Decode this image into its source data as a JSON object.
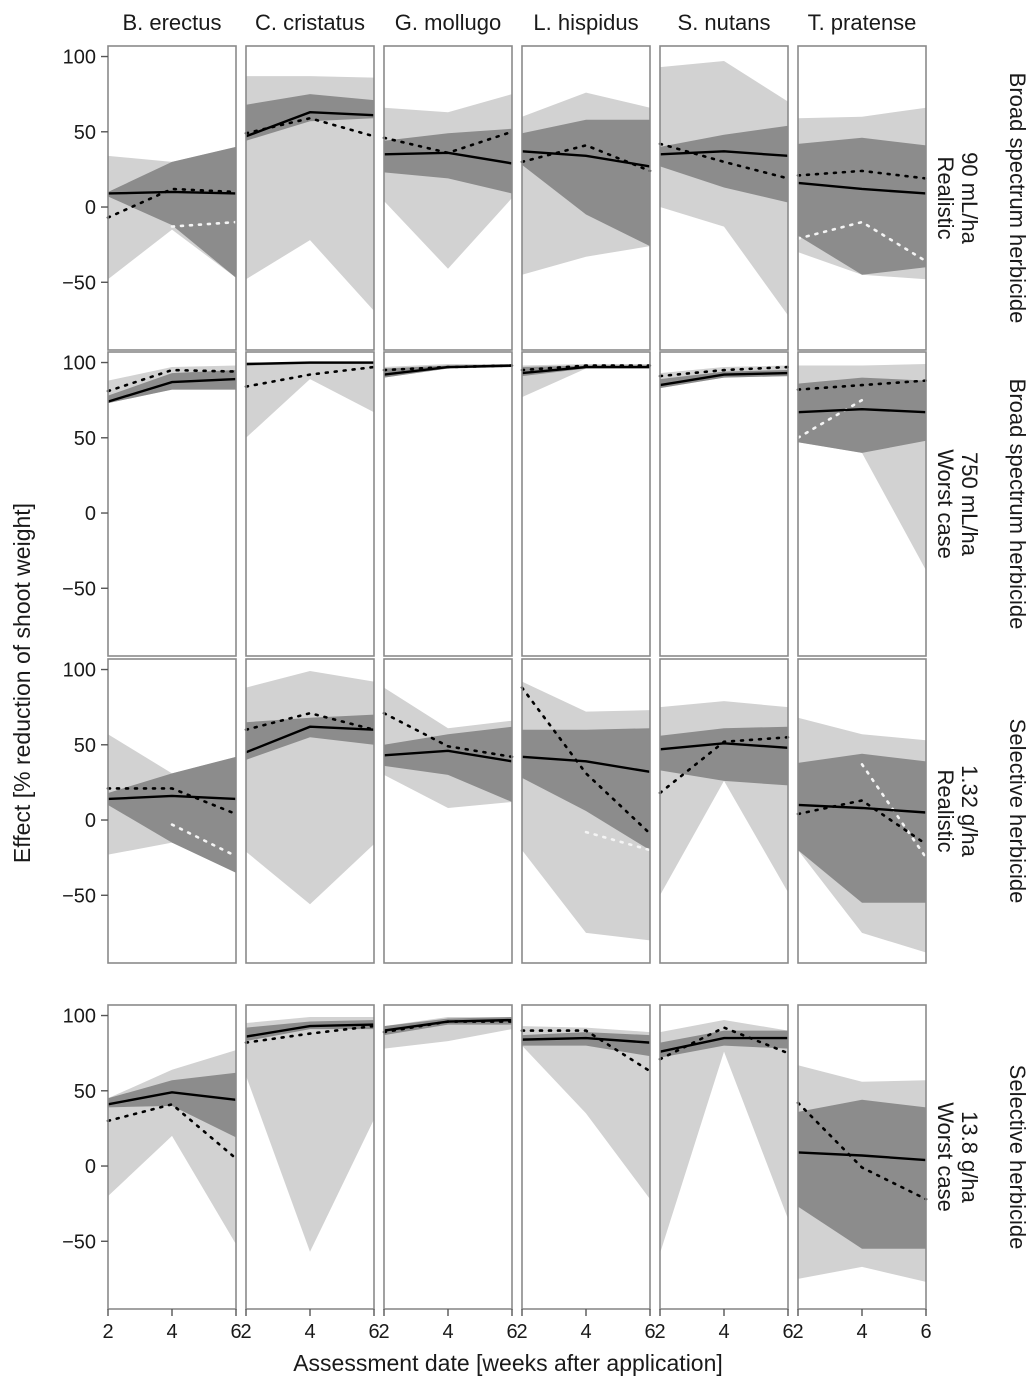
{
  "chart_data": {
    "type": "line",
    "xlabel": "Assessment date [weeks after application]",
    "ylabel": "Effect [% reduction of shoot weight]",
    "x": [
      2,
      4,
      6
    ],
    "x_ticks": [
      "2",
      "4",
      "6"
    ],
    "y_ticks": [
      "100",
      "50",
      "0",
      "−50"
    ],
    "ylim": [
      -95,
      107
    ],
    "grid": false,
    "species": [
      "B. erectus",
      "C. cristatus",
      "G. mollugo",
      "L. hispidus",
      "S. nutans",
      "T. pratense"
    ],
    "rows": [
      {
        "herbicide": "Broad spectrum herbicide",
        "rate": "90 mL/ha",
        "scenario": "Realistic"
      },
      {
        "herbicide": "Broad spectrum herbicide",
        "rate": "750 mL/ha",
        "scenario": "Worst case"
      },
      {
        "herbicide": "Selective herbicide",
        "rate": "1.32 g/ha",
        "scenario": "Realistic"
      },
      {
        "herbicide": "Selective herbicide",
        "rate": "13.8 g/ha",
        "scenario": "Worst case"
      }
    ],
    "panels": [
      [
        {
          "mean": [
            9,
            10,
            9
          ],
          "obs": [
            -7,
            12,
            10
          ],
          "obs2": [
            null,
            -13,
            -10
          ],
          "inner": [
            [
              7,
              10
            ],
            [
              -12,
              30
            ],
            [
              -47,
              40
            ]
          ],
          "outer": [
            [
              -48,
              34
            ],
            [
              -15,
              30
            ],
            [
              -47,
              40
            ]
          ]
        },
        {
          "mean": [
            47,
            63,
            61
          ],
          "obs": [
            49,
            59,
            47
          ],
          "inner": [
            [
              44,
              68
            ],
            [
              57,
              75
            ],
            [
              59,
              71
            ]
          ],
          "outer": [
            [
              -48,
              87
            ],
            [
              -22,
              87
            ],
            [
              -69,
              86
            ]
          ]
        },
        {
          "mean": [
            35,
            36,
            29
          ],
          "obs": [
            46,
            36,
            50
          ],
          "obs2": [
            null,
            null,
            5
          ],
          "inner": [
            [
              23,
              44
            ],
            [
              19,
              49
            ],
            [
              9,
              52
            ]
          ],
          "outer": [
            [
              4,
              66
            ],
            [
              -41,
              63
            ],
            [
              6,
              75
            ]
          ]
        },
        {
          "mean": [
            37,
            34,
            27
          ],
          "obs": [
            30,
            41,
            24
          ],
          "obs2": [
            null,
            null,
            5
          ],
          "inner": [
            [
              28,
              49
            ],
            [
              -5,
              58
            ],
            [
              -26,
              58
            ]
          ],
          "outer": [
            [
              -45,
              60
            ],
            [
              -33,
              76
            ],
            [
              -26,
              66
            ]
          ]
        },
        {
          "mean": [
            35,
            37,
            34
          ],
          "obs": [
            42,
            30,
            19
          ],
          "inner": [
            [
              27,
              40
            ],
            [
              13,
              48
            ],
            [
              3,
              54
            ]
          ],
          "outer": [
            [
              0,
              93
            ],
            [
              -13,
              97
            ],
            [
              -72,
              70
            ]
          ]
        },
        {
          "mean": [
            16,
            12,
            9
          ],
          "obs": [
            21,
            24,
            19
          ],
          "obs2": [
            -21,
            -10,
            -36
          ],
          "inner": [
            [
              -19,
              42
            ],
            [
              -45,
              46
            ],
            [
              -40,
              41
            ]
          ],
          "outer": [
            [
              -30,
              59
            ],
            [
              -45,
              60
            ],
            [
              -48,
              66
            ]
          ]
        }
      ],
      [
        {
          "mean": [
            74,
            87,
            89
          ],
          "obs": [
            81,
            95,
            94
          ],
          "obs2": [
            null,
            null,
            82
          ],
          "inner": [
            [
              73,
              78
            ],
            [
              82,
              93
            ],
            [
              82,
              95
            ]
          ],
          "outer": [
            [
              73,
              88
            ],
            [
              82,
              97
            ],
            [
              82,
              98
            ]
          ]
        },
        {
          "mean": [
            99,
            100,
            100
          ],
          "obs": [
            84,
            92,
            97
          ],
          "inner": [
            [
              98,
              100
            ],
            [
              99,
              100
            ],
            [
              99,
              100
            ]
          ],
          "outer": [
            [
              50,
              99
            ],
            [
              89,
              99
            ],
            [
              67,
              99
            ]
          ]
        },
        {
          "mean": [
            92,
            97,
            98
          ],
          "obs": [
            95,
            97,
            98
          ],
          "inner": [
            [
              90,
              96
            ],
            [
              96,
              98
            ],
            [
              97,
              98
            ]
          ],
          "outer": [
            [
              90,
              97
            ],
            [
              96,
              99
            ],
            [
              97,
              99
            ]
          ]
        },
        {
          "mean": [
            93,
            97,
            97
          ],
          "obs": [
            95,
            98,
            98
          ],
          "inner": [
            [
              91,
              97
            ],
            [
              96,
              98
            ],
            [
              96,
              98
            ]
          ],
          "outer": [
            [
              77,
              98
            ],
            [
              96,
              99
            ],
            [
              96,
              99
            ]
          ]
        },
        {
          "mean": [
            85,
            92,
            93
          ],
          "obs": [
            91,
            95,
            97
          ],
          "inner": [
            [
              83,
              89
            ],
            [
              90,
              94
            ],
            [
              91,
              95
            ]
          ],
          "outer": [
            [
              83,
              93
            ],
            [
              90,
              97
            ],
            [
              91,
              98
            ]
          ]
        },
        {
          "mean": [
            67,
            69,
            67
          ],
          "obs": [
            82,
            85,
            88
          ],
          "obs2": [
            50,
            75,
            null
          ],
          "inner": [
            [
              47,
              86
            ],
            [
              40,
              90
            ],
            [
              48,
              88
            ]
          ],
          "outer": [
            [
              47,
              98
            ],
            [
              40,
              98
            ],
            [
              -38,
              99
            ]
          ]
        }
      ],
      [
        {
          "mean": [
            14,
            16,
            14
          ],
          "obs": [
            21,
            21,
            4
          ],
          "obs2": [
            null,
            -3,
            -24
          ],
          "inner": [
            [
              10,
              18
            ],
            [
              -15,
              31
            ],
            [
              -35,
              42
            ]
          ],
          "outer": [
            [
              -23,
              57
            ],
            [
              -15,
              31
            ],
            [
              -35,
              42
            ]
          ]
        },
        {
          "mean": [
            45,
            62,
            60
          ],
          "obs": [
            60,
            71,
            60
          ],
          "inner": [
            [
              40,
              65
            ],
            [
              55,
              68
            ],
            [
              50,
              70
            ]
          ],
          "outer": [
            [
              -21,
              88
            ],
            [
              -56,
              99
            ],
            [
              -16,
              92
            ]
          ]
        },
        {
          "mean": [
            43,
            46,
            39
          ],
          "obs": [
            71,
            49,
            42
          ],
          "inner": [
            [
              36,
              50
            ],
            [
              30,
              57
            ],
            [
              12,
              62
            ]
          ],
          "outer": [
            [
              30,
              88
            ],
            [
              8,
              61
            ],
            [
              12,
              66
            ]
          ]
        },
        {
          "mean": [
            42,
            39,
            32
          ],
          "obs": [
            88,
            31,
            -9
          ],
          "obs2": [
            null,
            -8,
            -20
          ],
          "inner": [
            [
              28,
              60
            ],
            [
              6,
              60
            ],
            [
              -20,
              61
            ]
          ],
          "outer": [
            [
              -20,
              92
            ],
            [
              -75,
              72
            ],
            [
              -80,
              73
            ]
          ]
        },
        {
          "mean": [
            47,
            51,
            48
          ],
          "obs": [
            18,
            52,
            55
          ],
          "inner": [
            [
              33,
              56
            ],
            [
              26,
              61
            ],
            [
              23,
              62
            ]
          ],
          "outer": [
            [
              -50,
              75
            ],
            [
              26,
              79
            ],
            [
              -48,
              75
            ]
          ]
        },
        {
          "mean": [
            10,
            8,
            5
          ],
          "obs": [
            4,
            13,
            -16
          ],
          "obs2": [
            null,
            37,
            -25
          ],
          "inner": [
            [
              -20,
              38
            ],
            [
              -55,
              44
            ],
            [
              -55,
              39
            ]
          ],
          "outer": [
            [
              -20,
              68
            ],
            [
              -75,
              57
            ],
            [
              -88,
              53
            ]
          ]
        }
      ],
      [
        {
          "mean": [
            41,
            49,
            44
          ],
          "obs": [
            30,
            41,
            5
          ],
          "inner": [
            [
              39,
              45
            ],
            [
              40,
              57
            ],
            [
              19,
              62
            ]
          ],
          "outer": [
            [
              -20,
              45
            ],
            [
              20,
              64
            ],
            [
              -52,
              77
            ]
          ]
        },
        {
          "mean": [
            86,
            93,
            94
          ],
          "obs": [
            82,
            88,
            93
          ],
          "inner": [
            [
              83,
              92
            ],
            [
              91,
              96
            ],
            [
              91,
              97
            ]
          ],
          "outer": [
            [
              60,
              95
            ],
            [
              -57,
              99
            ],
            [
              31,
              99
            ]
          ]
        },
        {
          "mean": [
            90,
            96,
            97
          ],
          "obs": [
            89,
            96,
            96
          ],
          "obs2": [
            null,
            null,
            92
          ],
          "inner": [
            [
              87,
              93
            ],
            [
              94,
              98
            ],
            [
              94,
              99
            ]
          ],
          "outer": [
            [
              78,
              93
            ],
            [
              83,
              99
            ],
            [
              91,
              99
            ]
          ]
        },
        {
          "mean": [
            84,
            85,
            82
          ],
          "obs": [
            90,
            90,
            63
          ],
          "inner": [
            [
              80,
              87
            ],
            [
              80,
              89
            ],
            [
              73,
              87
            ]
          ],
          "outer": [
            [
              80,
              93
            ],
            [
              35,
              92
            ],
            [
              -22,
              89
            ]
          ]
        },
        {
          "mean": [
            76,
            85,
            85
          ],
          "obs": [
            71,
            92,
            75
          ],
          "inner": [
            [
              72,
              82
            ],
            [
              80,
              90
            ],
            [
              78,
              90
            ]
          ],
          "outer": [
            [
              -58,
              89
            ],
            [
              76,
              97
            ],
            [
              -35,
              90
            ]
          ]
        },
        {
          "mean": [
            9,
            7,
            4
          ],
          "obs": [
            42,
            -1,
            -22
          ],
          "inner": [
            [
              -27,
              36
            ],
            [
              -55,
              44
            ],
            [
              -55,
              39
            ]
          ],
          "outer": [
            [
              -75,
              67
            ],
            [
              -67,
              56
            ],
            [
              -77,
              57
            ]
          ]
        }
      ]
    ]
  }
}
